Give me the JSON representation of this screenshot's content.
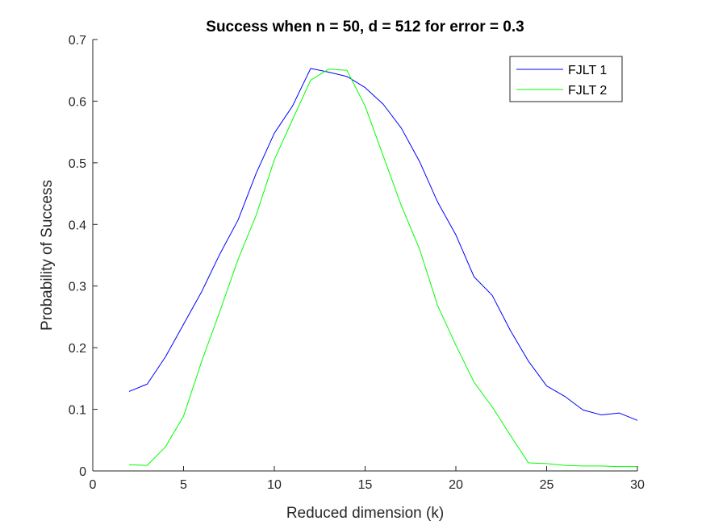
{
  "chart_data": {
    "type": "line",
    "title": "Success when n = 50, d = 512 for error = 0.3",
    "xlabel": "Reduced dimension (k)",
    "ylabel": "Probability of Success",
    "xlim": [
      0,
      30
    ],
    "ylim": [
      0,
      0.7
    ],
    "xticks": [
      0,
      5,
      10,
      15,
      20,
      25,
      30
    ],
    "yticks": [
      0,
      0.1,
      0.2,
      0.3,
      0.4,
      0.5,
      0.6,
      0.7
    ],
    "xtick_labels": [
      "0",
      "5",
      "10",
      "15",
      "20",
      "25",
      "30"
    ],
    "ytick_labels": [
      "0",
      "0.1",
      "0.2",
      "0.3",
      "0.4",
      "0.5",
      "0.6",
      "0.7"
    ],
    "grid": false,
    "legend_position": "top-right",
    "x": [
      2,
      3,
      4,
      5,
      6,
      7,
      8,
      9,
      10,
      11,
      12,
      13,
      14,
      15,
      16,
      17,
      18,
      19,
      20,
      21,
      22,
      23,
      24,
      25,
      26,
      27,
      28,
      29,
      30
    ],
    "series": [
      {
        "name": "FJLT 1",
        "color": "#0000ff",
        "values": [
          0.129,
          0.141,
          0.185,
          0.238,
          0.291,
          0.352,
          0.407,
          0.483,
          0.548,
          0.592,
          0.653,
          0.647,
          0.64,
          0.622,
          0.595,
          0.556,
          0.502,
          0.436,
          0.383,
          0.315,
          0.285,
          0.228,
          0.178,
          0.138,
          0.121,
          0.099,
          0.091,
          0.094,
          0.082
        ]
      },
      {
        "name": "FJLT 2",
        "color": "#00ff00",
        "values": [
          0.01,
          0.009,
          0.039,
          0.089,
          0.178,
          0.259,
          0.343,
          0.415,
          0.505,
          0.57,
          0.634,
          0.652,
          0.65,
          0.592,
          0.511,
          0.43,
          0.36,
          0.268,
          0.204,
          0.144,
          0.104,
          0.058,
          0.013,
          0.012,
          0.009,
          0.008,
          0.008,
          0.007,
          0.007
        ]
      }
    ]
  }
}
